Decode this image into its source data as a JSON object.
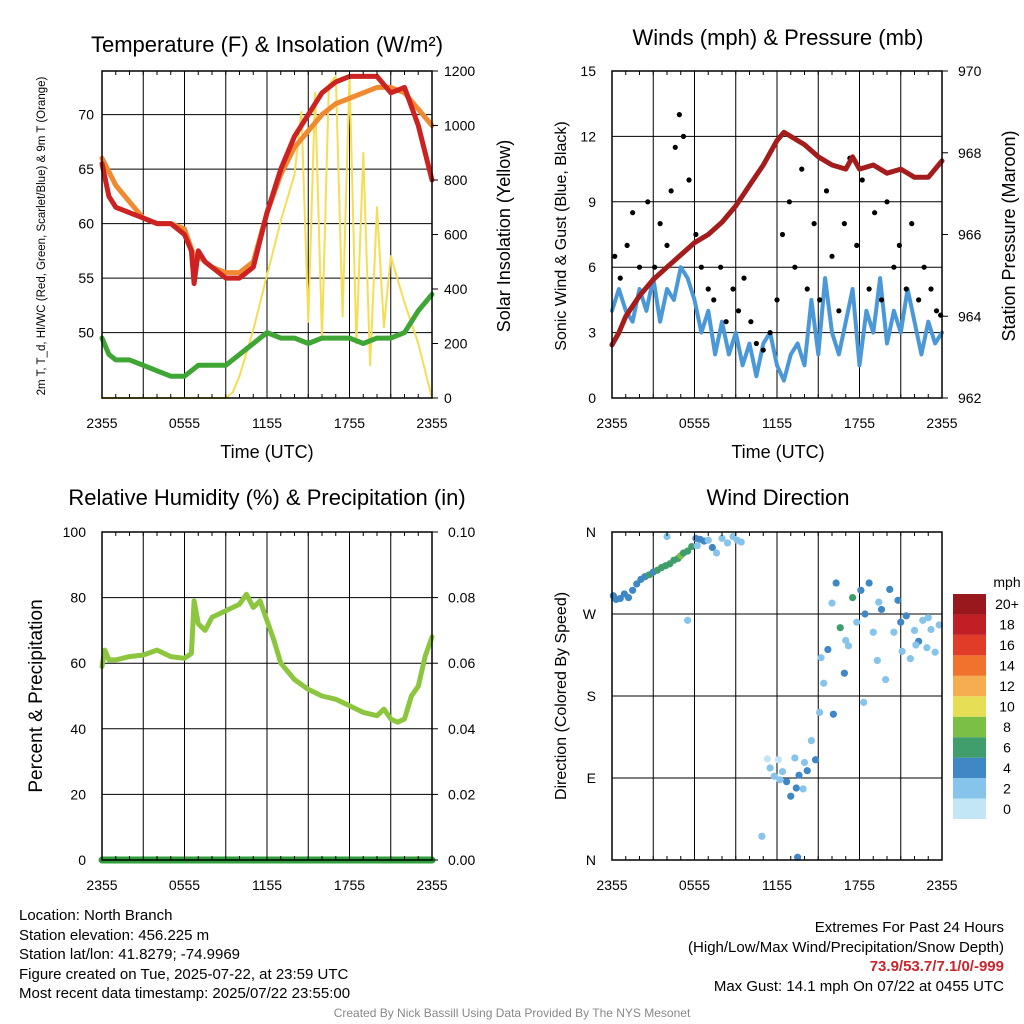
{
  "footer": {
    "location": "Location: North Branch",
    "elevation": "Station elevation: 456.225 m",
    "latlon": "Station lat/lon: 41.8279; -74.9969",
    "created": "Figure created on Tue, 2025-07-22, at 23:59 UTC",
    "recent": "Most recent data timestamp: 2025/07/22 23:55:00",
    "extremes_title": "Extremes For Past 24 Hours",
    "extremes_sub": "(High/Low/Max Wind/Precipitation/Snow Depth)",
    "extremes_values": "73.9/53.7/7.1/0/-999",
    "max_gust": "Max Gust: 14.1 mph On 07/22 at 0455 UTC",
    "credit": "Created By Nick Bassill Using Data Provided By The NYS Mesonet"
  },
  "colors": {
    "red": "#cc2222",
    "orange": "#f08a30",
    "green": "#3fa535",
    "yellow": "#f5dd55",
    "blue": "#4b98d8",
    "maroon": "#a51c1c",
    "lightgreen": "#8cc63f",
    "darkgreen": "#2e9e3a"
  },
  "chart_data": [
    {
      "type": "line",
      "title": "Temperature (F) & Insolation (W/m²)",
      "xlabel": "Time (UTC)",
      "ylabel": "2m T, T_d, HI/WC (Red, Green, Scarlet/Blue) & 9m T (Orange)",
      "ylabel_right": "Solar Insolation (Yellow)",
      "x_ticks": [
        "2355",
        "0555",
        "1155",
        "1755",
        "2355"
      ],
      "x_unit": "hours since 2355 UTC",
      "ylim": [
        44,
        74
      ],
      "y_ticks": [
        50,
        55,
        60,
        65,
        70
      ],
      "ylim_right": [
        0,
        1200
      ],
      "y_ticks_right": [
        0,
        200,
        400,
        600,
        800,
        1000,
        1200
      ],
      "series": [
        {
          "name": "2m T",
          "color": "red",
          "axis": "left",
          "x": [
            0,
            0.5,
            1,
            2,
            3,
            4,
            5,
            6,
            6.5,
            6.7,
            7,
            7.5,
            8,
            9,
            10,
            11,
            12,
            13,
            14,
            15,
            16,
            17,
            18,
            19,
            20,
            21,
            22,
            23,
            24
          ],
          "y": [
            65.5,
            62.5,
            61.5,
            61,
            60.5,
            60,
            60,
            59,
            57.5,
            54.5,
            57.5,
            56.5,
            56,
            55,
            55,
            56,
            61,
            65,
            68,
            70,
            72,
            73,
            73.5,
            73.5,
            73.5,
            72,
            72.5,
            69,
            64
          ]
        },
        {
          "name": "9m T",
          "color": "orange",
          "axis": "left",
          "x": [
            0,
            1,
            2,
            3,
            4,
            5,
            6,
            6.7,
            7,
            8,
            9,
            10,
            11,
            12,
            13,
            14,
            15,
            16,
            17,
            18,
            19,
            20,
            21,
            22,
            23,
            24
          ],
          "y": [
            66,
            63.5,
            62,
            60.5,
            60,
            60,
            59.5,
            57,
            57,
            56,
            55.5,
            55.5,
            56.5,
            61,
            64.5,
            67,
            68.5,
            70,
            71,
            71.5,
            72,
            72.5,
            72.5,
            72,
            70.5,
            69
          ]
        },
        {
          "name": "2m T_d",
          "color": "green",
          "axis": "left",
          "x": [
            0,
            0.5,
            1,
            2,
            3,
            4,
            5,
            6,
            7,
            8,
            9,
            10,
            11,
            12,
            13,
            14,
            15,
            16,
            17,
            18,
            19,
            20,
            21,
            22,
            23,
            24
          ],
          "y": [
            49.5,
            48,
            47.5,
            47.5,
            47,
            46.5,
            46,
            46,
            47,
            47,
            47,
            48,
            49,
            50,
            49.5,
            49.5,
            49,
            49.5,
            49.5,
            49.5,
            49,
            49.5,
            49.5,
            50,
            52,
            53.5
          ]
        },
        {
          "name": "Solar Insolation",
          "color": "yellow",
          "axis": "right",
          "x": [
            0,
            9,
            9.5,
            10,
            11,
            12,
            13,
            14,
            14.5,
            15,
            15.5,
            16,
            16.5,
            17,
            17.5,
            18,
            18.5,
            19,
            19.5,
            20,
            20.5,
            21,
            22,
            23,
            24
          ],
          "y": [
            0,
            0,
            20,
            80,
            250,
            450,
            650,
            820,
            1050,
            280,
            1120,
            220,
            1150,
            1180,
            300,
            1180,
            200,
            900,
            120,
            700,
            260,
            520,
            350,
            200,
            0
          ]
        }
      ]
    },
    {
      "type": "line",
      "title": "Winds (mph) & Pressure (mb)",
      "xlabel": "Time (UTC)",
      "ylabel": "Sonic Wind & Gust (Blue, Black)",
      "ylabel_right": "Station Pressure (Maroon)",
      "x_ticks": [
        "2355",
        "0555",
        "1155",
        "1755",
        "2355"
      ],
      "x_unit": "hours since 2355 UTC",
      "ylim": [
        0,
        15
      ],
      "y_ticks": [
        0,
        3,
        6,
        9,
        12,
        15
      ],
      "ylim_right": [
        962,
        970
      ],
      "y_ticks_right": [
        962,
        964,
        966,
        968,
        970
      ],
      "series": [
        {
          "name": "Sonic Wind",
          "color": "blue",
          "axis": "left",
          "x": [
            0,
            0.5,
            1,
            1.5,
            2,
            2.5,
            3,
            3.5,
            4,
            4.5,
            5,
            5.5,
            6,
            6.5,
            7,
            7.5,
            8,
            8.5,
            9,
            9.5,
            10,
            10.5,
            11,
            11.5,
            12,
            12.5,
            13,
            13.5,
            14,
            14.5,
            15,
            15.5,
            16,
            16.5,
            17,
            17.5,
            18,
            18.5,
            19,
            19.5,
            20,
            20.5,
            21,
            21.5,
            22,
            22.5,
            23,
            23.5,
            24
          ],
          "y": [
            4,
            5,
            4,
            3.5,
            5,
            4,
            5.5,
            3.5,
            5,
            4.5,
            6,
            5.5,
            4.5,
            3,
            4,
            2,
            3.5,
            2,
            3,
            1.5,
            2.5,
            1,
            2.5,
            3,
            1.5,
            0.8,
            2,
            2.5,
            1.5,
            4.5,
            2,
            5.5,
            3,
            2,
            3.5,
            5,
            1.5,
            4,
            3,
            5.5,
            2.5,
            4,
            3,
            5,
            3.5,
            2,
            3.5,
            2.5,
            3
          ]
        },
        {
          "name": "Gust",
          "color": "black",
          "axis": "left",
          "marker": "dot",
          "x": [
            0.2,
            0.6,
            1.1,
            1.5,
            2.0,
            2.6,
            3.1,
            3.5,
            4.0,
            4.3,
            4.6,
            4.9,
            5.2,
            5.6,
            6.1,
            6.5,
            7.0,
            7.4,
            7.9,
            8.3,
            8.8,
            9.2,
            9.6,
            10.1,
            10.5,
            11.0,
            11.5,
            12.0,
            12.4,
            12.9,
            13.3,
            13.8,
            14.2,
            14.7,
            15.1,
            15.6,
            16.0,
            16.5,
            16.9,
            17.3,
            17.8,
            18.2,
            18.7,
            19.1,
            19.6,
            20.0,
            20.5,
            20.9,
            21.4,
            21.8,
            22.3,
            22.7,
            23.2,
            23.6,
            23.9
          ],
          "y": [
            6.5,
            5.5,
            7,
            8.5,
            6,
            9,
            6,
            8,
            7,
            9.5,
            11.5,
            13,
            12,
            10,
            7.5,
            6,
            5,
            4.5,
            6,
            3.5,
            5,
            4,
            5.5,
            3.5,
            2.5,
            2.2,
            3,
            4.5,
            7.5,
            9,
            6,
            10.5,
            5,
            8,
            4.5,
            9.5,
            6.5,
            4,
            8,
            11,
            7,
            10,
            5,
            8.5,
            4.5,
            9,
            6,
            7,
            5,
            8,
            4.5,
            6,
            5,
            4,
            3.8
          ]
        },
        {
          "name": "Station Pressure",
          "color": "maroon",
          "axis": "right",
          "x": [
            0,
            0.5,
            1,
            2,
            3,
            4,
            5,
            6,
            7,
            8,
            9,
            10,
            11,
            11.5,
            12,
            12.5,
            13,
            13.5,
            14,
            15,
            16,
            17,
            17.5,
            18,
            19,
            20,
            21,
            22,
            23,
            24
          ],
          "y": [
            963.3,
            963.6,
            964.0,
            964.5,
            964.9,
            965.2,
            965.5,
            965.8,
            966.0,
            966.3,
            966.7,
            967.2,
            967.7,
            968.0,
            968.3,
            968.5,
            968.4,
            968.3,
            968.2,
            967.9,
            967.7,
            967.6,
            967.9,
            967.6,
            967.7,
            967.5,
            967.6,
            967.4,
            967.4,
            967.8
          ]
        }
      ]
    },
    {
      "type": "line",
      "title": "Relative Humidity (%) & Precipitation (in)",
      "ylabel": "Percent & Precipitation",
      "x_ticks": [
        "2355",
        "0555",
        "1155",
        "1755",
        "2355"
      ],
      "x_unit": "hours since 2355 UTC",
      "ylim": [
        0,
        100
      ],
      "y_ticks": [
        0,
        20,
        40,
        60,
        80,
        100
      ],
      "ylim_right": [
        0,
        0.1
      ],
      "y_ticks_right": [
        "0.00",
        "0.02",
        "0.04",
        "0.06",
        "0.08",
        "0.10"
      ],
      "series": [
        {
          "name": "Relative Humidity",
          "color": "lightgreen",
          "axis": "left",
          "x": [
            0,
            0.2,
            0.5,
            1,
            2,
            3,
            4,
            5,
            6,
            6.5,
            6.7,
            7,
            7.5,
            8,
            9,
            10,
            10.5,
            11,
            11.5,
            12,
            12.5,
            13,
            14,
            15,
            16,
            17,
            18,
            19,
            20,
            20.5,
            21,
            21.5,
            22,
            22.5,
            23,
            23.5,
            24
          ],
          "y": [
            59,
            64,
            61,
            61,
            62,
            62.5,
            64,
            62,
            61.5,
            63,
            79,
            72,
            70,
            74,
            76,
            78,
            81,
            77,
            79,
            73,
            67,
            60,
            55,
            52,
            50,
            49,
            47,
            45,
            44,
            46,
            43,
            42,
            43,
            50,
            53,
            62,
            68
          ]
        },
        {
          "name": "Precipitation",
          "color": "darkgreen",
          "axis": "right",
          "x": [
            0,
            24
          ],
          "y": [
            0,
            0
          ]
        }
      ]
    },
    {
      "type": "scatter",
      "title": "Wind Direction",
      "ylabel": "Direction (Colored By Speed)",
      "x_ticks": [
        "2355",
        "0555",
        "1155",
        "1755",
        "2355"
      ],
      "x_unit": "hours since 2355 UTC",
      "y_ticks": [
        "N",
        "E",
        "S",
        "W",
        "N"
      ],
      "y_unit": "degrees",
      "colorbar_title": "mph",
      "colorbar_labels": [
        "0",
        "2",
        "4",
        "6",
        "8",
        "10",
        "12",
        "14",
        "16",
        "18",
        "20+"
      ],
      "colorbar_colors": [
        "#c2e6f6",
        "#86c4ec",
        "#3f88c5",
        "#3f9e6b",
        "#7bbf44",
        "#e6df56",
        "#f6ad4f",
        "#f0722d",
        "#e03c28",
        "#c11f26",
        "#98181d"
      ],
      "x": [
        0.1,
        0.3,
        0.6,
        0.9,
        1.2,
        1.5,
        1.8,
        2.1,
        2.4,
        2.7,
        3.0,
        3.3,
        3.6,
        3.9,
        4.2,
        4.5,
        4.8,
        5.0,
        5.2,
        5.5,
        5.8,
        6.1,
        6.4,
        6.7,
        7.0,
        7.3,
        7.6,
        8.0,
        8.4,
        8.8,
        9.1,
        9.4,
        6.2,
        4.0,
        11.5,
        11.8,
        12.1,
        12.4,
        12.7,
        13.0,
        13.3,
        13.6,
        13.9,
        14.2,
        14.5,
        14.8,
        15.1,
        15.4,
        15.7,
        16.0,
        16.3,
        16.6,
        16.9,
        17.2,
        17.5,
        17.8,
        18.1,
        18.4,
        18.7,
        19.0,
        19.3,
        19.6,
        19.9,
        20.2,
        20.5,
        20.8,
        21.1,
        21.4,
        21.7,
        22.0,
        22.3,
        22.6,
        22.9,
        23.2,
        23.5,
        23.8,
        11.3,
        12.2,
        13.4,
        14.0,
        15.2,
        16.1,
        17.0,
        18.3,
        19.4,
        21.0,
        22.1,
        23.0,
        5.5,
        10.9,
        13.5
      ],
      "y": [
        290,
        286,
        287,
        292,
        288,
        296,
        303,
        308,
        311,
        313,
        316,
        318,
        321,
        323,
        325,
        329,
        331,
        334,
        337,
        339,
        344,
        353,
        352,
        350,
        351,
        343,
        337,
        353,
        348,
        355,
        351,
        349,
        345,
        355,
        101,
        92,
        110,
        97,
        86,
        70,
        112,
        93,
        78,
        98,
        131,
        110,
        162,
        194,
        231,
        282,
        304,
        255,
        205,
        235,
        288,
        261,
        296,
        270,
        304,
        250,
        219,
        275,
        198,
        297,
        250,
        285,
        229,
        268,
        221,
        252,
        240,
        263,
        233,
        253,
        228,
        258,
        111,
        88,
        79,
        107,
        222,
        160,
        241,
        173,
        283,
        261,
        236,
        266,
        263,
        26,
        3
      ],
      "speed": [
        3,
        3,
        3,
        4,
        4,
        4,
        3,
        4,
        4,
        5,
        4,
        5,
        5,
        6,
        6,
        6,
        6,
        7,
        6,
        5,
        5,
        4,
        3,
        3,
        2,
        3,
        2,
        1,
        2,
        1,
        2,
        1,
        2,
        2,
        1,
        1,
        0,
        2,
        3,
        3,
        1,
        4,
        2,
        3,
        2,
        3,
        2,
        2,
        3,
        2,
        3,
        5,
        3,
        2,
        6,
        2,
        3,
        4,
        3,
        2,
        1,
        3,
        2,
        3,
        2,
        3,
        2,
        3,
        1,
        2,
        3,
        2,
        1,
        2,
        1,
        2,
        0,
        1,
        3,
        2,
        2,
        3,
        1,
        2,
        2,
        3,
        2,
        1,
        2,
        1,
        3
      ]
    }
  ]
}
